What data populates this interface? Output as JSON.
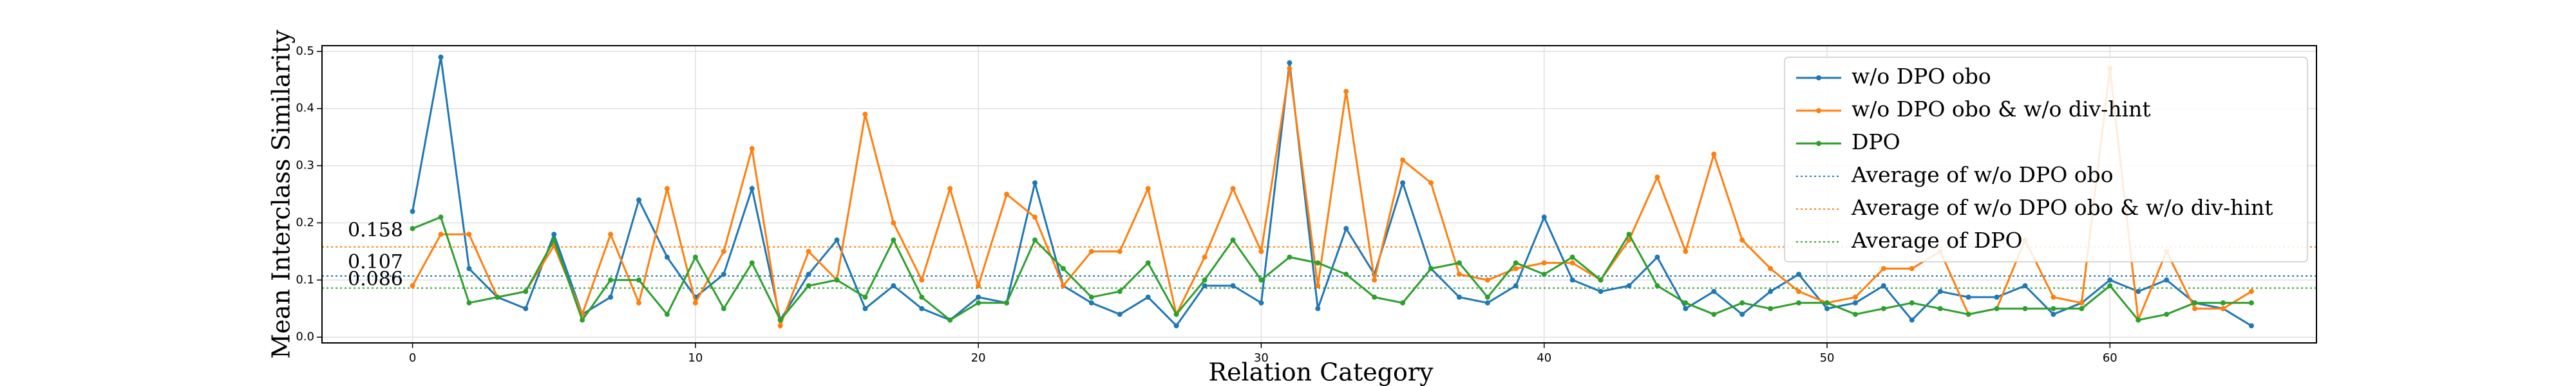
{
  "chart_data": {
    "type": "line",
    "xlabel": "Relation Category",
    "ylabel": "Mean Interclass Similarity",
    "x": [
      0,
      1,
      2,
      3,
      4,
      5,
      6,
      7,
      8,
      9,
      10,
      11,
      12,
      13,
      14,
      15,
      16,
      17,
      18,
      19,
      20,
      21,
      22,
      23,
      24,
      25,
      26,
      27,
      28,
      29,
      30,
      31,
      32,
      33,
      34,
      35,
      36,
      37,
      38,
      39,
      40,
      41,
      42,
      43,
      44,
      45,
      46,
      47,
      48,
      49,
      50,
      51,
      52,
      53,
      54,
      55,
      56,
      57,
      58,
      59,
      60,
      61,
      62,
      63,
      64,
      65
    ],
    "series": [
      {
        "name": "w/o DPO obo",
        "color": "#1f77b4",
        "values": [
          0.22,
          0.49,
          0.12,
          0.07,
          0.05,
          0.18,
          0.04,
          0.07,
          0.24,
          0.14,
          0.07,
          0.11,
          0.26,
          0.03,
          0.11,
          0.17,
          0.05,
          0.09,
          0.05,
          0.03,
          0.07,
          0.06,
          0.27,
          0.09,
          0.06,
          0.04,
          0.07,
          0.02,
          0.09,
          0.09,
          0.06,
          0.48,
          0.05,
          0.19,
          0.11,
          0.27,
          0.12,
          0.07,
          0.06,
          0.09,
          0.21,
          0.1,
          0.08,
          0.09,
          0.14,
          0.05,
          0.08,
          0.04,
          0.08,
          0.11,
          0.05,
          0.06,
          0.09,
          0.03,
          0.08,
          0.07,
          0.07,
          0.09,
          0.04,
          0.06,
          0.1,
          0.08,
          0.1,
          0.06,
          0.05,
          0.02
        ]
      },
      {
        "name": "w/o DPO obo & w/o div-hint",
        "color": "#ff7f0e",
        "values": [
          0.09,
          0.18,
          0.18,
          0.07,
          0.08,
          0.16,
          0.04,
          0.18,
          0.06,
          0.26,
          0.06,
          0.15,
          0.33,
          0.02,
          0.15,
          0.1,
          0.39,
          0.2,
          0.1,
          0.26,
          0.09,
          0.25,
          0.21,
          0.09,
          0.15,
          0.15,
          0.26,
          0.04,
          0.14,
          0.26,
          0.15,
          0.47,
          0.09,
          0.43,
          0.1,
          0.31,
          0.27,
          0.11,
          0.1,
          0.12,
          0.13,
          0.13,
          0.1,
          0.17,
          0.28,
          0.15,
          0.32,
          0.17,
          0.12,
          0.08,
          0.06,
          0.07,
          0.12,
          0.12,
          0.15,
          0.04,
          0.05,
          0.17,
          0.07,
          0.06,
          0.47,
          0.03,
          0.15,
          0.05,
          0.05,
          0.08
        ]
      },
      {
        "name": "DPO",
        "color": "#2ca02c",
        "values": [
          0.19,
          0.21,
          0.06,
          0.07,
          0.08,
          0.17,
          0.03,
          0.1,
          0.1,
          0.04,
          0.14,
          0.05,
          0.13,
          0.03,
          0.09,
          0.1,
          0.07,
          0.17,
          0.07,
          0.03,
          0.06,
          0.06,
          0.17,
          0.12,
          0.07,
          0.08,
          0.13,
          0.04,
          0.1,
          0.17,
          0.1,
          0.14,
          0.13,
          0.11,
          0.07,
          0.06,
          0.12,
          0.13,
          0.07,
          0.13,
          0.11,
          0.14,
          0.1,
          0.18,
          0.09,
          0.06,
          0.04,
          0.06,
          0.05,
          0.06,
          0.06,
          0.04,
          0.05,
          0.06,
          0.05,
          0.04,
          0.05,
          0.05,
          0.05,
          0.05,
          0.09,
          0.03,
          0.04,
          0.06,
          0.06,
          0.06
        ]
      }
    ],
    "average_lines": [
      {
        "name": "Average of w/o DPO obo",
        "color": "#1f77b4",
        "value": 0.107
      },
      {
        "name": "Average of w/o DPO obo & w/o div-hint",
        "color": "#ff7f0e",
        "value": 0.158
      },
      {
        "name": "Average of DPO",
        "color": "#2ca02c",
        "value": 0.086
      }
    ],
    "xlim": [
      -3.2,
      67.3
    ],
    "ylim": [
      -0.01,
      0.51
    ],
    "xticks": [
      0,
      10,
      20,
      30,
      40,
      50,
      60
    ],
    "yticks": [
      {
        "value": 0,
        "label": "0.0"
      },
      0.1,
      0.2,
      0.3,
      0.4,
      0.5
    ],
    "grid": true,
    "legend": "upper right"
  }
}
